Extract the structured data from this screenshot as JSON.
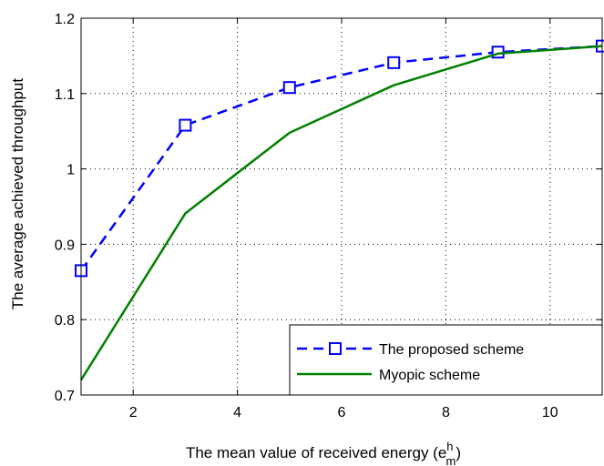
{
  "chart_data": {
    "type": "line",
    "title": "",
    "xlabel": "The mean value of received energy (e",
    "xlabel_sup": "h",
    "xlabel_sub": "m",
    "xlabel_close": ")",
    "ylabel": "The average achieved throughput",
    "xlim": [
      1,
      11
    ],
    "ylim": [
      0.7,
      1.2
    ],
    "xticks": [
      2,
      4,
      6,
      8,
      10
    ],
    "yticks": [
      0.7,
      0.8,
      0.9,
      1,
      1.1,
      1.2
    ],
    "xtick_labels": [
      "2",
      "4",
      "6",
      "8",
      "10"
    ],
    "ytick_labels": [
      "0.7",
      "0.8",
      "0.9",
      "1",
      "1.1",
      "1.2"
    ],
    "grid": true,
    "legend_position": "bottom-right",
    "series": [
      {
        "name": "The proposed scheme",
        "color": "#0000ff",
        "style": "dashed",
        "marker": "square",
        "x": [
          1,
          3,
          5,
          7,
          9,
          11
        ],
        "y": [
          0.865,
          1.058,
          1.108,
          1.141,
          1.155,
          1.163
        ]
      },
      {
        "name": "Myopic scheme",
        "color": "#008000",
        "style": "solid",
        "marker": "none",
        "x": [
          1,
          3,
          5,
          7,
          9,
          11
        ],
        "y": [
          0.72,
          0.941,
          1.048,
          1.111,
          1.153,
          1.163
        ]
      }
    ]
  }
}
